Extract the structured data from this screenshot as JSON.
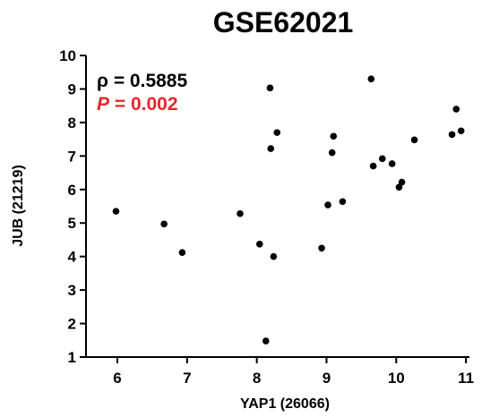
{
  "chart_data": {
    "type": "scatter",
    "title": "GSE62021",
    "xlabel": "YAP1 (26066)",
    "ylabel": "JUB (21219)",
    "xlim": [
      5.55,
      11.05
    ],
    "ylim": [
      1,
      10
    ],
    "xticks": [
      "6",
      "7",
      "8",
      "9",
      "10",
      "11"
    ],
    "yticks": [
      "1",
      "2",
      "3",
      "4",
      "5",
      "6",
      "7",
      "8",
      "9",
      "10"
    ],
    "grid": false,
    "annotations": {
      "rho_label": "ρ = 0.5885",
      "p_symbol": "P",
      "p_value": " = 0.002"
    },
    "colors": {
      "points": "#000000",
      "p_annotation": "#e8262a"
    },
    "points": [
      {
        "x": 5.98,
        "y": 5.35
      },
      {
        "x": 6.67,
        "y": 4.97
      },
      {
        "x": 6.93,
        "y": 4.12
      },
      {
        "x": 7.76,
        "y": 5.28
      },
      {
        "x": 8.04,
        "y": 4.37
      },
      {
        "x": 8.13,
        "y": 1.48
      },
      {
        "x": 8.19,
        "y": 9.03
      },
      {
        "x": 8.2,
        "y": 7.22
      },
      {
        "x": 8.24,
        "y": 4.0
      },
      {
        "x": 8.29,
        "y": 7.7
      },
      {
        "x": 8.93,
        "y": 4.25
      },
      {
        "x": 9.02,
        "y": 5.54
      },
      {
        "x": 9.08,
        "y": 7.1
      },
      {
        "x": 9.1,
        "y": 7.59
      },
      {
        "x": 9.23,
        "y": 5.64
      },
      {
        "x": 9.64,
        "y": 9.3
      },
      {
        "x": 9.67,
        "y": 6.7
      },
      {
        "x": 9.8,
        "y": 6.92
      },
      {
        "x": 9.94,
        "y": 6.77
      },
      {
        "x": 10.04,
        "y": 6.07
      },
      {
        "x": 10.08,
        "y": 6.22
      },
      {
        "x": 10.26,
        "y": 7.48
      },
      {
        "x": 10.8,
        "y": 7.64
      },
      {
        "x": 10.86,
        "y": 8.4
      },
      {
        "x": 10.93,
        "y": 7.75
      }
    ]
  }
}
